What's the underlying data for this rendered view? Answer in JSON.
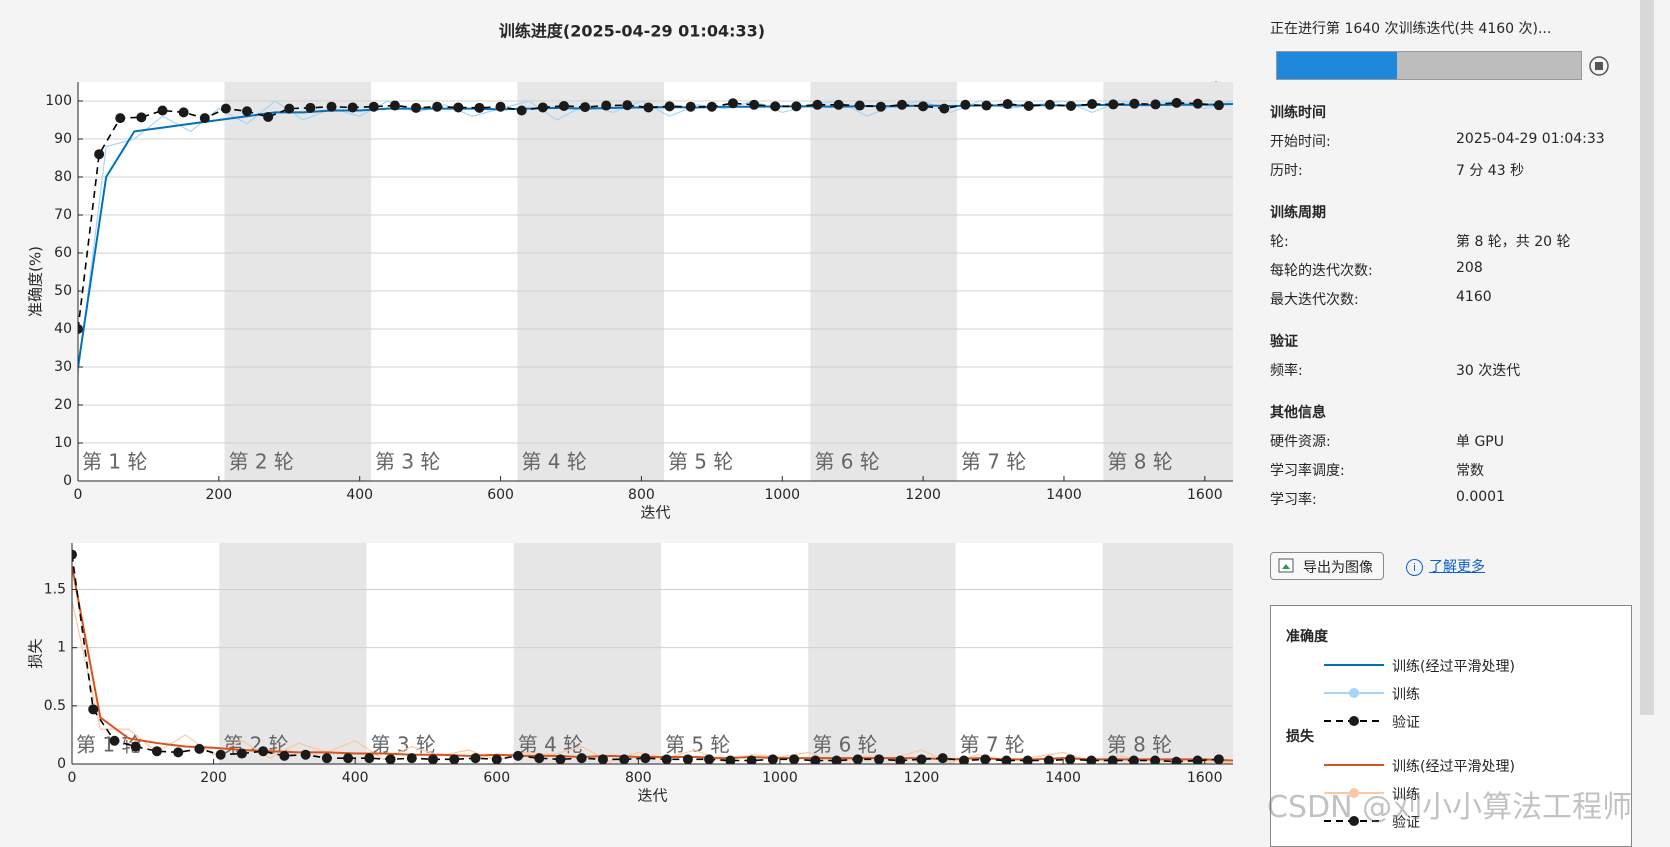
{
  "chart_data": [
    {
      "type": "line",
      "title": "训练进度(2025-04-29 01:04:33)",
      "ylabel": "准确度(%)",
      "xlabel": "迭代",
      "legend_title": "准确度",
      "xlim": [
        0,
        1640
      ],
      "xticks": [
        0,
        200,
        400,
        600,
        800,
        1000,
        1200,
        1400,
        1600
      ],
      "ylim": [
        0,
        105
      ],
      "yticks": [
        0,
        10,
        20,
        30,
        40,
        50,
        60,
        70,
        80,
        90,
        100
      ],
      "grid": true,
      "bands": [
        {
          "label": "第 1 轮",
          "start": 0,
          "end": 208
        },
        {
          "label": "第 2 轮",
          "start": 208,
          "end": 416
        },
        {
          "label": "第 3 轮",
          "start": 416,
          "end": 624
        },
        {
          "label": "第 4 轮",
          "start": 624,
          "end": 832
        },
        {
          "label": "第 5 轮",
          "start": 832,
          "end": 1040
        },
        {
          "label": "第 6 轮",
          "start": 1040,
          "end": 1248
        },
        {
          "label": "第 7 轮",
          "start": 1248,
          "end": 1456
        },
        {
          "label": "第 8 轮",
          "start": 1456,
          "end": 1664
        }
      ],
      "x": [
        0,
        40,
        80,
        120,
        160,
        200,
        240,
        280,
        320,
        360,
        400,
        440,
        480,
        520,
        560,
        600,
        640,
        680,
        720,
        760,
        800,
        840,
        880,
        920,
        960,
        1000,
        1040,
        1080,
        1120,
        1160,
        1200,
        1240,
        1280,
        1320,
        1360,
        1400,
        1440,
        1480,
        1520,
        1560,
        1600,
        1640
      ],
      "series": [
        {
          "name": "训练(经过平滑处理)",
          "color": "#0072bd",
          "values": [
            30,
            80,
            92,
            93,
            94,
            95,
            96,
            97,
            97,
            97.5,
            97.5,
            98,
            98,
            98,
            98,
            97.8,
            98,
            98.2,
            98,
            98.2,
            98.3,
            98.4,
            98.3,
            98.5,
            98.5,
            98.6,
            98.6,
            98.5,
            98.7,
            98.6,
            98.8,
            98.7,
            98.8,
            98.8,
            98.9,
            98.8,
            98.9,
            99,
            98.9,
            99,
            99,
            99.2
          ]
        },
        {
          "name": "训练",
          "color": "#a9d5f5",
          "values": [
            28,
            88,
            90,
            96,
            92,
            98,
            94,
            100,
            95,
            98,
            96,
            100,
            97,
            99,
            96,
            98,
            100,
            95,
            99,
            97,
            100,
            96,
            99,
            98,
            100,
            97,
            99,
            100,
            96,
            99,
            100,
            97,
            100,
            98,
            99,
            100,
            97,
            100,
            99,
            100,
            98,
            100
          ]
        },
        {
          "name": "验证",
          "color": "#000000",
          "dashed": true,
          "marker": true,
          "x": [
            0,
            30,
            60,
            90,
            120,
            150,
            180,
            210,
            240,
            270,
            300,
            330,
            360,
            390,
            420,
            450,
            480,
            510,
            540,
            570,
            600,
            630,
            660,
            690,
            720,
            750,
            780,
            810,
            840,
            870,
            900,
            930,
            960,
            990,
            1020,
            1050,
            1080,
            1110,
            1140,
            1170,
            1200,
            1230,
            1260,
            1290,
            1320,
            1350,
            1380,
            1410,
            1440,
            1470,
            1500,
            1530,
            1560,
            1590,
            1620
          ],
          "values": [
            40,
            86,
            95.5,
            95.7,
            97.5,
            97,
            95.5,
            98,
            97.3,
            95.8,
            98,
            98.2,
            98.5,
            98.3,
            98.5,
            98.8,
            98.2,
            98.5,
            98.3,
            98.2,
            98.5,
            97.5,
            98.3,
            98.7,
            98.4,
            98.8,
            98.9,
            98.3,
            98.6,
            98.5,
            98.5,
            99.4,
            99,
            98.6,
            98.6,
            99,
            99,
            98.8,
            98.5,
            99,
            98.6,
            98,
            99,
            98.8,
            99.2,
            98.7,
            99,
            98.7,
            99.2,
            99.1,
            99.3,
            99.1,
            99.5,
            99.3,
            98.9
          ]
        }
      ]
    },
    {
      "type": "line",
      "ylabel": "损失",
      "xlabel": "迭代",
      "legend_title": "损失",
      "xlim": [
        0,
        1640
      ],
      "xticks": [
        0,
        200,
        400,
        600,
        800,
        1000,
        1200,
        1400,
        1600
      ],
      "ylim": [
        0,
        1.9
      ],
      "yticks": [
        0,
        0.5,
        1,
        1.5
      ],
      "grid": true,
      "bands": [
        {
          "label": "第 1 轮",
          "start": 0,
          "end": 208
        },
        {
          "label": "第 2 轮",
          "start": 208,
          "end": 416
        },
        {
          "label": "第 3 轮",
          "start": 416,
          "end": 624
        },
        {
          "label": "第 4 轮",
          "start": 624,
          "end": 832
        },
        {
          "label": "第 5 轮",
          "start": 832,
          "end": 1040
        },
        {
          "label": "第 6 轮",
          "start": 1040,
          "end": 1248
        },
        {
          "label": "第 7 轮",
          "start": 1248,
          "end": 1456
        },
        {
          "label": "第 8 轮",
          "start": 1456,
          "end": 1664
        }
      ],
      "x": [
        0,
        40,
        80,
        120,
        160,
        200,
        240,
        280,
        320,
        360,
        400,
        440,
        480,
        520,
        560,
        600,
        640,
        680,
        720,
        760,
        800,
        840,
        880,
        920,
        960,
        1000,
        1040,
        1080,
        1120,
        1160,
        1200,
        1240,
        1280,
        1320,
        1360,
        1400,
        1440,
        1480,
        1520,
        1560,
        1600,
        1640
      ],
      "series": [
        {
          "name": "训练(经过平滑处理)",
          "color": "#d95319",
          "values": [
            1.7,
            0.4,
            0.22,
            0.18,
            0.15,
            0.14,
            0.12,
            0.11,
            0.1,
            0.1,
            0.09,
            0.09,
            0.08,
            0.08,
            0.07,
            0.08,
            0.07,
            0.07,
            0.06,
            0.07,
            0.06,
            0.06,
            0.06,
            0.05,
            0.06,
            0.05,
            0.05,
            0.05,
            0.05,
            0.05,
            0.05,
            0.04,
            0.05,
            0.04,
            0.04,
            0.05,
            0.04,
            0.04,
            0.04,
            0.04,
            0.04,
            0.03
          ]
        },
        {
          "name": "训练",
          "color": "#fac8a4",
          "values": [
            1.4,
            0.3,
            0.3,
            0.1,
            0.25,
            0.08,
            0.2,
            0.05,
            0.18,
            0.1,
            0.2,
            0.04,
            0.15,
            0.07,
            0.12,
            0.03,
            0.1,
            0.08,
            0.15,
            0.02,
            0.1,
            0.05,
            0.12,
            0.02,
            0.08,
            0.06,
            0.1,
            0.01,
            0.07,
            0.05,
            0.12,
            0.01,
            0.08,
            0.03,
            0.06,
            0.1,
            0.02,
            0.07,
            0.03,
            0.05,
            0.02,
            0.01
          ]
        },
        {
          "name": "验证",
          "color": "#000000",
          "dashed": true,
          "marker": true,
          "x": [
            0,
            30,
            60,
            90,
            120,
            150,
            180,
            210,
            240,
            270,
            300,
            330,
            360,
            390,
            420,
            450,
            480,
            510,
            540,
            570,
            600,
            630,
            660,
            690,
            720,
            750,
            780,
            810,
            840,
            870,
            900,
            930,
            960,
            990,
            1020,
            1050,
            1080,
            1110,
            1140,
            1170,
            1200,
            1230,
            1260,
            1290,
            1320,
            1350,
            1380,
            1410,
            1440,
            1470,
            1500,
            1530,
            1560,
            1590,
            1620
          ],
          "values": [
            1.8,
            0.47,
            0.2,
            0.15,
            0.11,
            0.1,
            0.13,
            0.08,
            0.09,
            0.11,
            0.07,
            0.08,
            0.05,
            0.05,
            0.05,
            0.04,
            0.05,
            0.04,
            0.04,
            0.05,
            0.04,
            0.07,
            0.05,
            0.04,
            0.05,
            0.04,
            0.04,
            0.05,
            0.04,
            0.04,
            0.04,
            0.03,
            0.03,
            0.04,
            0.04,
            0.03,
            0.03,
            0.04,
            0.04,
            0.03,
            0.04,
            0.05,
            0.03,
            0.04,
            0.03,
            0.03,
            0.03,
            0.04,
            0.03,
            0.03,
            0.03,
            0.03,
            0.02,
            0.03,
            0.04
          ]
        }
      ]
    }
  ],
  "progress": {
    "label": "正在进行第 1640 次训练迭代(共 4160 次)...",
    "value": 1640,
    "max": 4160
  },
  "sections": [
    {
      "title": "训练时间",
      "rows": [
        [
          "开始时间:",
          "2025-04-29 01:04:33"
        ],
        [
          "历时:",
          "7 分 43 秒"
        ]
      ]
    },
    {
      "title": "训练周期",
      "rows": [
        [
          "轮:",
          "第 8 轮，共 20 轮"
        ],
        [
          "每轮的迭代次数:",
          "208"
        ],
        [
          "最大迭代次数:",
          "4160"
        ]
      ]
    },
    {
      "title": "验证",
      "rows": [
        [
          "频率:",
          "30 次迭代"
        ]
      ]
    },
    {
      "title": "其他信息",
      "rows": [
        [
          "硬件资源:",
          "单 GPU"
        ],
        [
          "学习率调度:",
          "常数"
        ],
        [
          "学习率:",
          "0.0001"
        ]
      ]
    }
  ],
  "buttons": {
    "export": "导出为图像",
    "learn_more": "了解更多"
  },
  "watermark": "CSDN @刘小小算法工程师"
}
